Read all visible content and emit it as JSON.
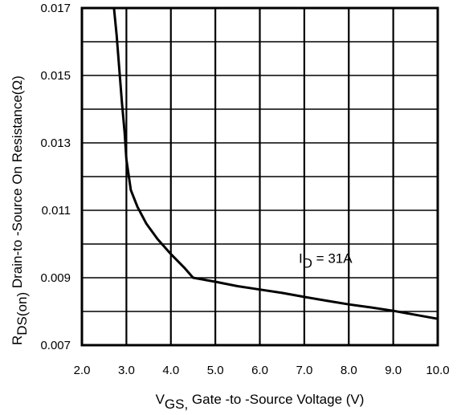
{
  "chart_data": {
    "type": "line",
    "title": "",
    "xlabel": {
      "main": "V",
      "sub": "GS,",
      "rest": " Gate -to -Source Voltage  (V)"
    },
    "ylabel": {
      "main": "R",
      "sub": "DS(on)",
      "rest": " Drain-to -Source On Resistance(Ω)"
    },
    "xlim": [
      2.0,
      10.0
    ],
    "ylim": [
      0.007,
      0.017
    ],
    "xticks": [
      "2.0",
      "3.0",
      "4.0",
      "5.0",
      "6.0",
      "7.0",
      "8.0",
      "9.0",
      "10.0"
    ],
    "yticks": [
      "0.007",
      "0.009",
      "0.011",
      "0.013",
      "0.015",
      "0.017"
    ],
    "grid": true,
    "annotation": {
      "main": "I",
      "sub": "D",
      "rest": " = 31A",
      "x": 7.2,
      "y": 0.0092
    },
    "series": [
      {
        "name": "",
        "x": [
          2.72,
          2.78,
          2.84,
          2.9,
          2.96,
          3.0,
          3.1,
          3.25,
          3.45,
          3.7,
          4.0,
          4.3,
          4.5,
          5.0,
          5.5,
          6.0,
          6.5,
          7.0,
          7.5,
          8.0,
          8.5,
          9.0,
          9.5,
          10.0
        ],
        "y": [
          0.017,
          0.0162,
          0.0152,
          0.0142,
          0.0133,
          0.0125,
          0.0116,
          0.0111,
          0.0106,
          0.01015,
          0.0097,
          0.0093,
          0.009,
          0.00888,
          0.00875,
          0.00865,
          0.00855,
          0.00843,
          0.00832,
          0.00821,
          0.00812,
          0.00802,
          0.0079,
          0.00778
        ]
      }
    ]
  }
}
